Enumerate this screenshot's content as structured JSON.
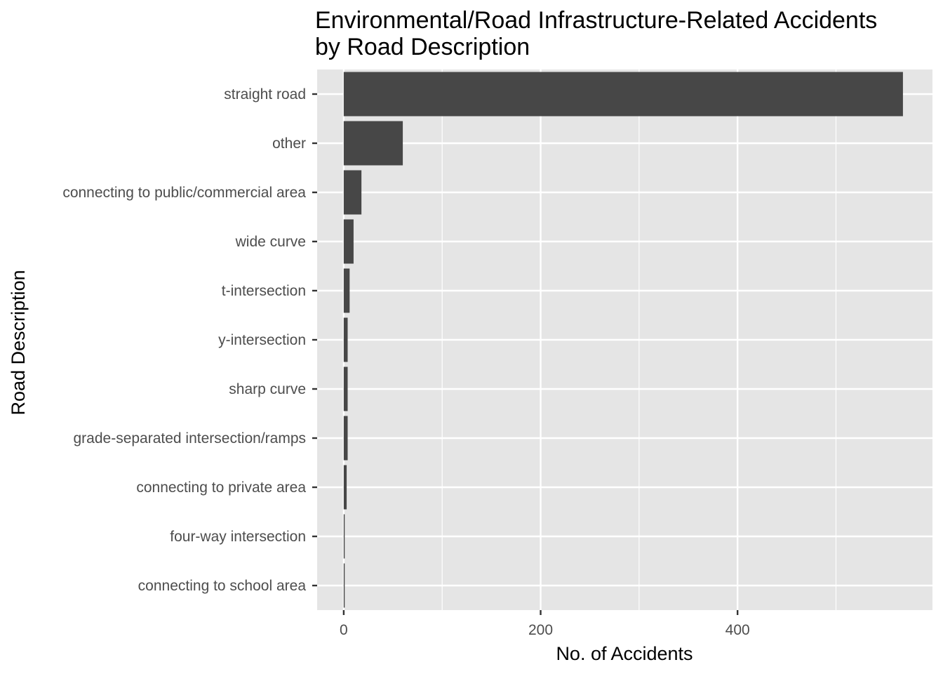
{
  "chart_data": {
    "type": "bar",
    "orientation": "horizontal",
    "title": "Environmental/Road Infrastructure-Related Accidents\nby Road Description",
    "xlabel": "No. of Accidents",
    "ylabel": "Road Description",
    "categories": [
      "straight road",
      "other",
      "connecting to public/commercial area",
      "wide curve",
      "t-intersection",
      "y-intersection",
      "sharp curve",
      "grade-separated intersection/ramps",
      "connecting to private area",
      "four-way intersection",
      "connecting to school area"
    ],
    "values": [
      568,
      60,
      18,
      10,
      6,
      4,
      4,
      4,
      3,
      1,
      1
    ],
    "xlim": [
      -27,
      598
    ],
    "x_ticks": [
      0,
      200,
      400
    ],
    "x_minor_ticks": [
      100,
      300,
      500
    ],
    "grid": true,
    "legend": "none",
    "colors": {
      "bar": "#474747",
      "panel": "#e5e5e5",
      "grid": "#ffffff",
      "tick_text": "#4d4d4d"
    }
  }
}
